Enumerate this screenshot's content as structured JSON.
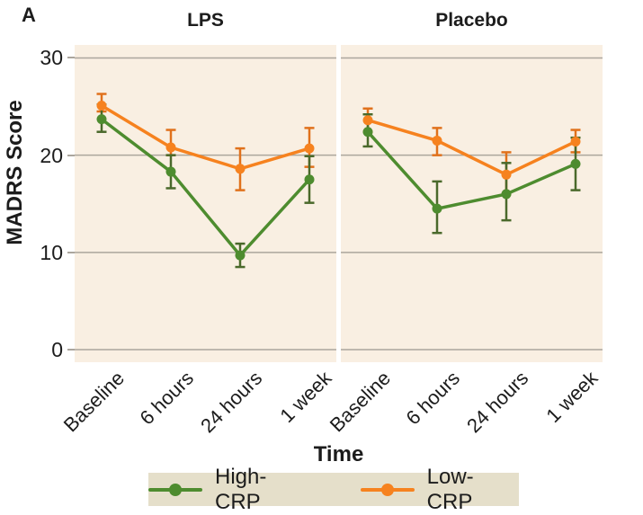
{
  "panel_label": "A",
  "colors": {
    "panel_bg": "#f9efe2",
    "legend_bg": "#e5dfca",
    "gridline": "#aba69d",
    "text": "#1c1c1c",
    "high_crp_green": "#4e8c2f",
    "high_crp_error_green": "#4a692b",
    "low_crp_orange": "#f6821f",
    "low_crp_error_orange": "#e0711c"
  },
  "legend": {
    "items": [
      {
        "label": "High-CRP",
        "color": "#4e8c2f"
      },
      {
        "label": "Low-CRP",
        "color": "#f6821f"
      }
    ]
  },
  "chart_data": {
    "type": "line",
    "title": "",
    "xlabel": "Time",
    "ylabel": "MADRS Score",
    "categories": [
      "Baseline",
      "6 hours",
      "24 hours",
      "1 week"
    ],
    "yticks": [
      0,
      10,
      20,
      30
    ],
    "ylim": [
      -1.3,
      31.4
    ],
    "grid": true,
    "legend_position": "bottom",
    "error_bars": true,
    "series_styles": [
      {
        "name": "High-CRP",
        "color": "#4e8c2f",
        "error_color": "#4a692b"
      },
      {
        "name": "Low-CRP",
        "color": "#f6821f",
        "error_color": "#e0711c"
      }
    ],
    "facets": [
      {
        "title": "LPS",
        "series": [
          {
            "name": "High-CRP",
            "values": [
              23.7,
              18.3,
              9.7,
              17.5
            ],
            "ci_low": [
              22.4,
              16.6,
              8.5,
              15.1
            ],
            "ci_high": [
              25.2,
              20.0,
              10.9,
              19.9
            ]
          },
          {
            "name": "Low-CRP",
            "values": [
              25.1,
              20.8,
              18.6,
              20.7
            ],
            "ci_low": [
              24.5,
              20.0,
              16.4,
              18.8
            ],
            "ci_high": [
              26.3,
              22.6,
              20.7,
              22.8
            ]
          }
        ]
      },
      {
        "title": "Placebo",
        "series": [
          {
            "name": "High-CRP",
            "values": [
              22.4,
              14.5,
              16.0,
              19.1
            ],
            "ci_low": [
              20.9,
              12.0,
              13.3,
              16.4
            ],
            "ci_high": [
              24.2,
              17.3,
              19.2,
              21.8
            ]
          },
          {
            "name": "Low-CRP",
            "values": [
              23.6,
              21.5,
              18.0,
              21.4
            ],
            "ci_low": [
              22.4,
              20.0,
              16.0,
              20.3
            ],
            "ci_high": [
              24.8,
              22.8,
              20.3,
              22.6
            ]
          }
        ]
      }
    ]
  }
}
